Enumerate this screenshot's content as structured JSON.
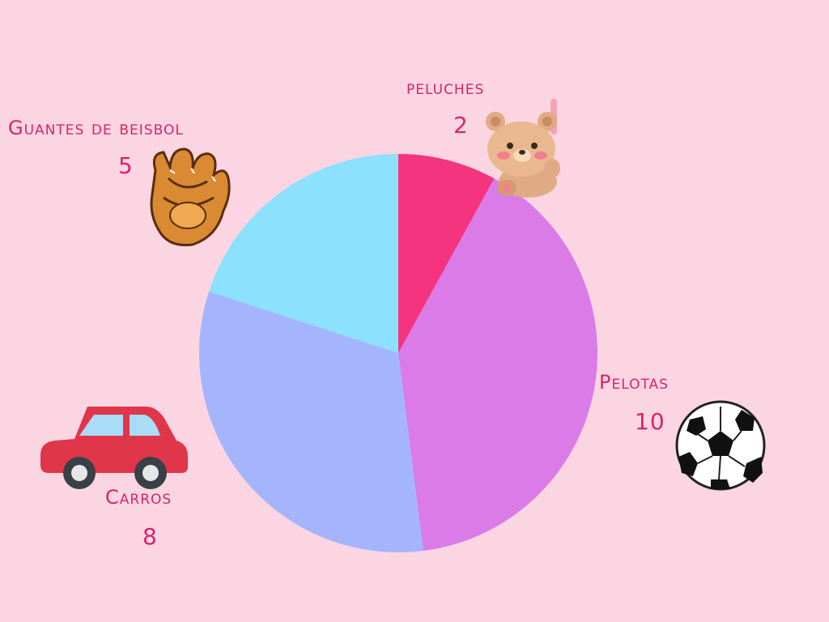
{
  "chart_data": {
    "type": "pie",
    "categories": [
      "peluches",
      "Pelotas",
      "Carros",
      "Guantes de beisbol"
    ],
    "values": [
      2,
      10,
      8,
      5
    ],
    "colors": [
      "#f5347f",
      "#da7be8",
      "#a4b5fd",
      "#8be1fe"
    ],
    "start": "12 o'clock, clockwise"
  },
  "pictures": {
    "peluches": "teddy-bear-icon",
    "Pelotas": "soccer-ball-icon",
    "Carros": "red-car-icon",
    "Guantes de beisbol": "baseball-glove-icon"
  }
}
